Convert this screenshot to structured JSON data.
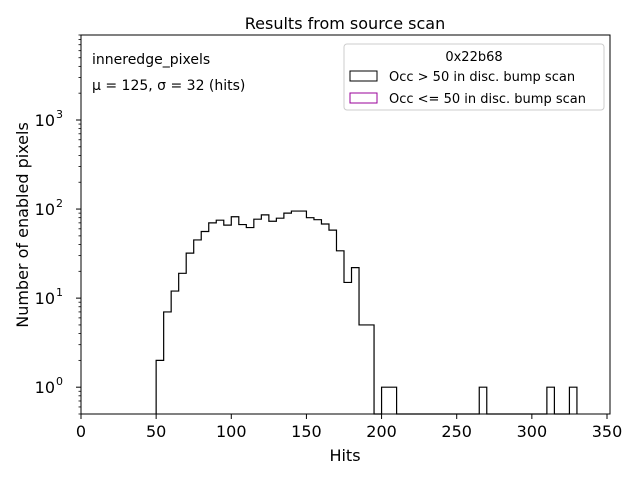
{
  "chart_data": {
    "type": "histogram",
    "title": "Results from source scan",
    "xlabel": "Hits",
    "ylabel": "Number of enabled pixels",
    "xlim": [
      0,
      352
    ],
    "ylim": [
      0.5,
      9000
    ],
    "yscale": "log",
    "x_ticks": [
      0,
      50,
      100,
      150,
      200,
      250,
      300,
      350
    ],
    "x_tick_labels": [
      "0",
      "50",
      "100",
      "150",
      "200",
      "250",
      "300",
      "350"
    ],
    "y_ticks": [
      1,
      10,
      100,
      1000
    ],
    "y_tick_bases": [
      "10",
      "10",
      "10",
      "10"
    ],
    "y_tick_exps": [
      "0",
      "1",
      "2",
      "3"
    ],
    "grid": false,
    "legend_position": "top-right",
    "legend_title": "0x22b68",
    "annotations": {
      "name": "inneredge_pixels",
      "stats_line": "μ = 125, σ = 32 (hits)"
    },
    "series": [
      {
        "name": "Occ > 50 in disc. bump scan",
        "color": "#000000",
        "bin_edges": [
          50,
          55,
          60,
          65,
          70,
          75,
          80,
          85,
          90,
          95,
          100,
          105,
          110,
          115,
          120,
          125,
          130,
          135,
          140,
          145,
          150,
          155,
          160,
          165,
          170,
          175,
          180,
          185,
          190,
          195,
          200,
          205,
          210,
          215,
          220,
          225,
          230,
          235,
          240,
          245,
          250,
          255,
          260,
          265,
          270,
          275,
          280,
          285,
          290,
          295,
          300,
          305,
          310,
          315,
          320,
          325,
          330
        ],
        "counts": [
          2,
          7,
          12,
          19,
          32,
          45,
          56,
          70,
          75,
          66,
          82,
          67,
          62,
          77,
          86,
          73,
          79,
          90,
          95,
          95,
          80,
          76,
          68,
          58,
          34,
          15,
          22,
          5,
          5,
          0,
          1,
          1,
          0,
          0,
          0,
          0,
          0,
          0,
          0,
          0,
          0,
          0,
          0,
          1,
          0,
          0,
          0,
          0,
          0,
          0,
          0,
          0,
          1,
          0,
          0,
          1
        ]
      },
      {
        "name": "Occ <= 50 in disc. bump scan",
        "color": "#990099",
        "bin_edges": [],
        "counts": []
      }
    ]
  }
}
